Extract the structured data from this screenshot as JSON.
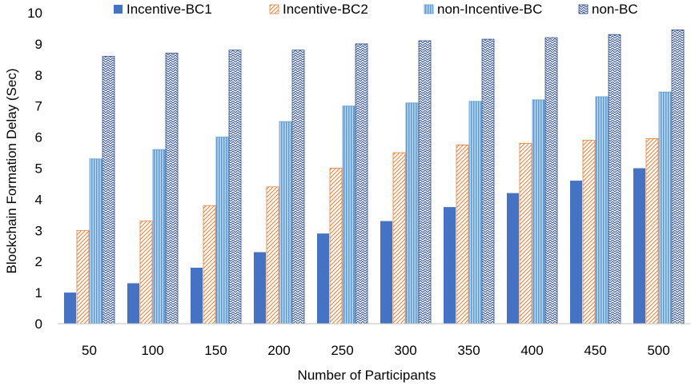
{
  "chart_data": {
    "type": "bar",
    "xlabel": "Number of Participants",
    "ylabel": "Blockchain Formation Delay (Sec)",
    "categories": [
      "50",
      "100",
      "150",
      "200",
      "250",
      "300",
      "350",
      "400",
      "450",
      "500"
    ],
    "ylim": [
      0,
      10
    ],
    "yticks": [
      "0",
      "1",
      "2",
      "3",
      "4",
      "5",
      "6",
      "7",
      "8",
      "9",
      "10"
    ],
    "grid": false,
    "legend_position": "top",
    "series": [
      {
        "name": "Incentive-BC1",
        "color": "#4472c4",
        "pattern": "solid",
        "values": [
          1.0,
          1.3,
          1.8,
          2.3,
          2.9,
          3.3,
          3.75,
          4.2,
          4.6,
          5.0
        ]
      },
      {
        "name": "Incentive-BC2",
        "color": "#ed7d31",
        "pattern": "diagonal-hatch",
        "values": [
          3.0,
          3.3,
          3.8,
          4.4,
          5.0,
          5.5,
          5.75,
          5.8,
          5.9,
          5.95
        ]
      },
      {
        "name": "non-Incentive-BC",
        "color": "#5b9bd5",
        "pattern": "vertical-stripes",
        "values": [
          5.3,
          5.6,
          6.0,
          6.5,
          7.0,
          7.1,
          7.15,
          7.2,
          7.3,
          7.45
        ]
      },
      {
        "name": "non-BC",
        "color": "#2f4f8f",
        "pattern": "zigzag",
        "values": [
          8.6,
          8.7,
          8.8,
          8.8,
          9.0,
          9.1,
          9.15,
          9.2,
          9.3,
          9.45
        ]
      }
    ]
  }
}
